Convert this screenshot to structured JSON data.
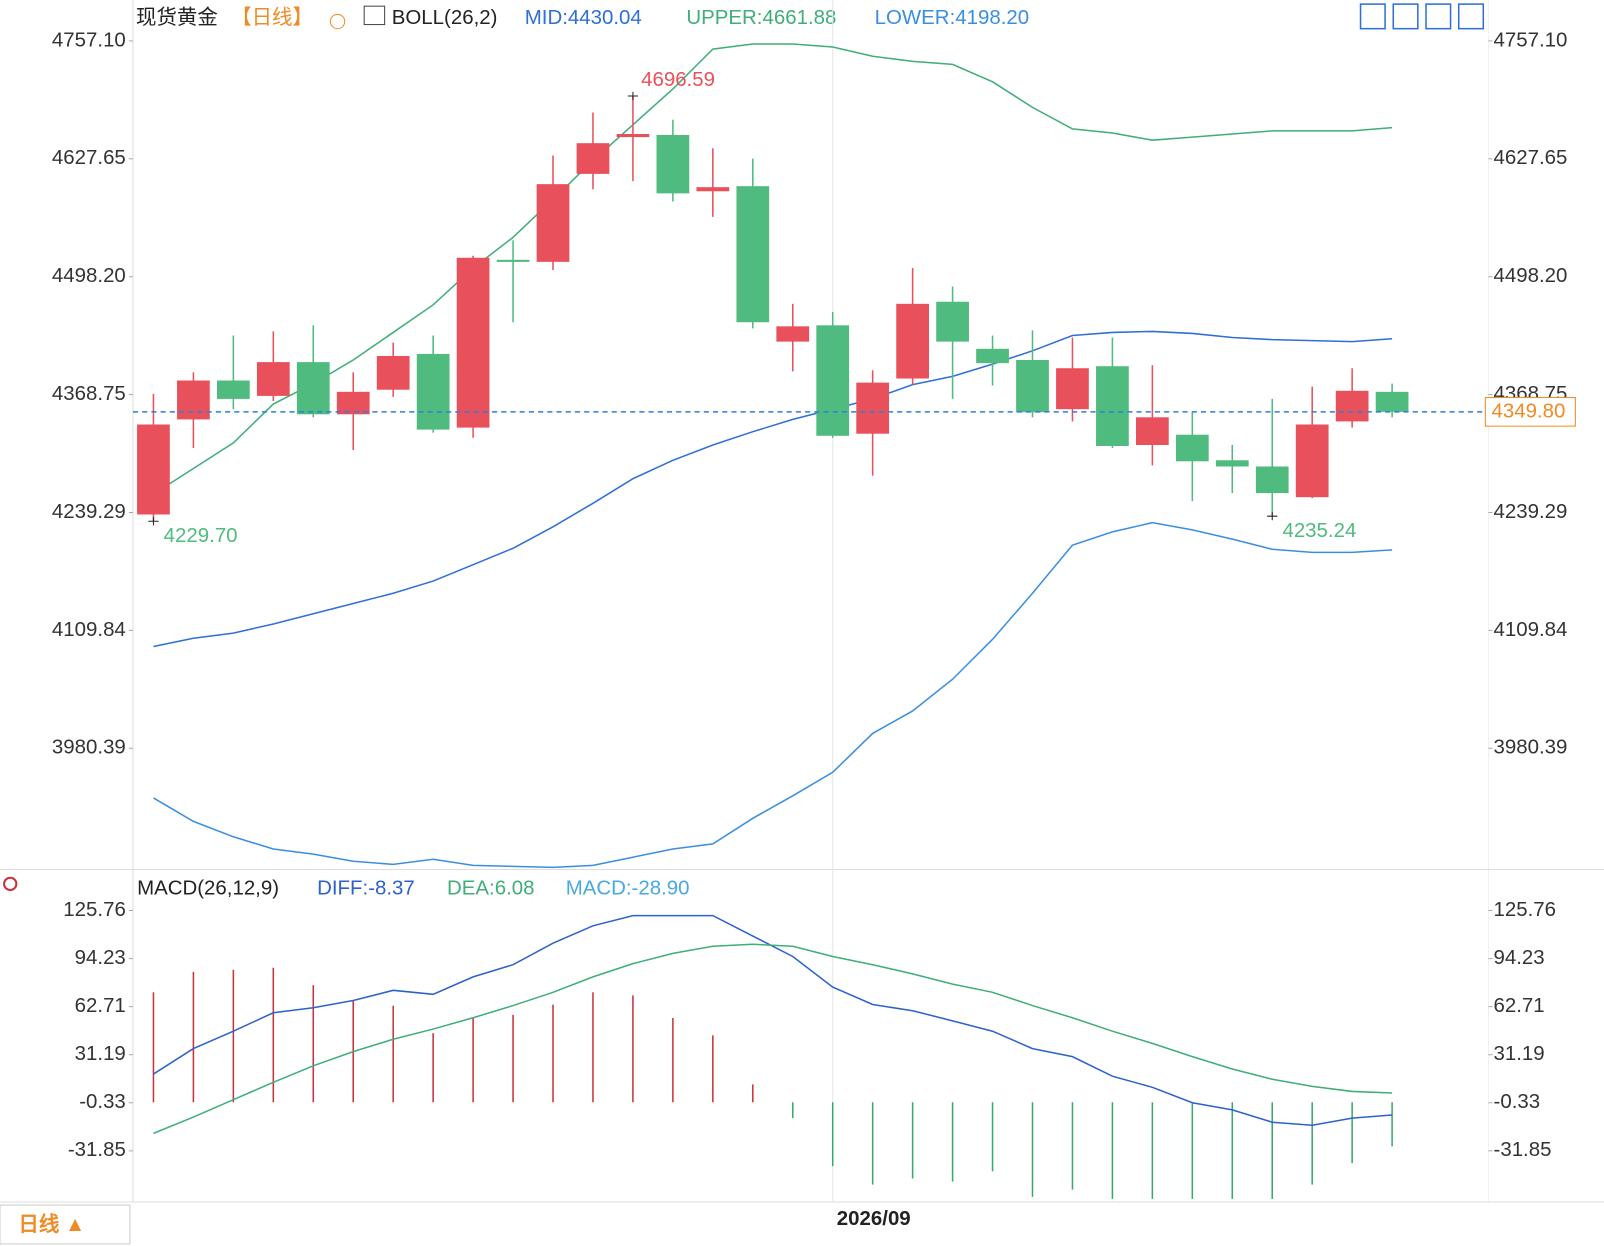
{
  "chart_data": [
    {
      "type": "candlestick",
      "title": "现货黄金",
      "period": "【日线】",
      "indicator": "BOLL(26,2)",
      "categories": [
        null,
        null,
        null,
        null,
        null,
        null,
        null,
        null,
        null,
        null,
        null,
        null,
        null,
        null,
        null,
        null,
        null,
        "2026/09",
        null,
        null,
        null,
        null,
        null,
        null,
        null,
        null,
        null,
        null,
        null,
        null,
        null,
        null
      ],
      "open": [
        4237.1,
        4341.5,
        4384.2,
        4367.3,
        4404.4,
        4347.1,
        4374.1,
        4413.4,
        4332.5,
        4516.7,
        4514.5,
        4611.1,
        4651.5,
        4653.8,
        4592.0,
        4597.6,
        4426.9,
        4444.8,
        4325.8,
        4386.4,
        4470.7,
        4419.0,
        4406.7,
        4352.7,
        4399.9,
        4313.4,
        4324.7,
        4296.6,
        4289.8,
        4256.1,
        4339.3,
        4371.8
      ],
      "high": [
        4369.6,
        4393.2,
        4433.6,
        4438.1,
        4444.8,
        4393.2,
        4425.8,
        4433.6,
        4521.2,
        4538.1,
        4631.3,
        4678.5,
        4696.59,
        4670.6,
        4639.2,
        4627.9,
        4468.4,
        4459.5,
        4395.4,
        4507.8,
        4487.5,
        4433.6,
        4439.2,
        4431.4,
        4431.4,
        4401.0,
        4349.4,
        4313.4,
        4364.0,
        4377.5,
        4397.7,
        4380.8
      ],
      "low": [
        4229.7,
        4310.1,
        4352.7,
        4361.7,
        4343.8,
        4307.8,
        4366.2,
        4326.9,
        4321.3,
        4448.2,
        4505.5,
        4594.2,
        4603.2,
        4580.8,
        4563.9,
        4441.5,
        4394.3,
        4321.3,
        4279.7,
        4379.7,
        4364.0,
        4378.6,
        4343.8,
        4339.3,
        4310.1,
        4291.0,
        4251.7,
        4260.6,
        4235.24,
        4255.0,
        4332.5,
        4343.8
      ],
      "close": [
        4335.9,
        4384.2,
        4364.0,
        4404.4,
        4347.1,
        4371.8,
        4411.1,
        4330.3,
        4519.0,
        4514.5,
        4599.8,
        4644.8,
        4654.9,
        4589.7,
        4596.5,
        4448.2,
        4443.7,
        4323.5,
        4381.9,
        4468.4,
        4426.9,
        4403.3,
        4349.4,
        4397.7,
        4312.3,
        4343.8,
        4295.5,
        4289.8,
        4260.6,
        4335.9,
        4372.9,
        4349.8
      ],
      "high_labels": [
        null,
        null,
        null,
        null,
        null,
        null,
        null,
        null,
        null,
        null,
        null,
        null,
        "4696.59",
        null,
        null,
        null,
        null,
        null,
        null,
        null,
        null,
        null,
        null,
        null,
        null,
        null,
        null,
        null,
        null,
        null,
        null,
        null
      ],
      "low_labels": [
        "4229.70",
        null,
        null,
        null,
        null,
        null,
        null,
        null,
        null,
        null,
        null,
        null,
        null,
        null,
        null,
        null,
        null,
        null,
        null,
        null,
        null,
        null,
        null,
        null,
        null,
        null,
        null,
        null,
        "4235.24",
        null,
        null,
        null
      ],
      "close_labels": [
        null,
        null,
        null,
        null,
        null,
        null,
        null,
        null,
        null,
        null,
        null,
        null,
        null,
        null,
        null,
        null,
        null,
        null,
        null,
        null,
        null,
        null,
        null,
        null,
        null,
        null,
        null,
        null,
        null,
        null,
        null,
        "4349.80"
      ],
      "up_color": "#e8505b",
      "down_color": "#4fbb7f",
      "last_price_color": "#f08a24",
      "last_line_color": "#2f7fd6",
      "series": [
        {
          "name": "MID:4430.04",
          "color": "#2f6fd6",
          "values": [
            4092.2,
            4101.2,
            4106.8,
            4116.9,
            4128.1,
            4139.3,
            4150.6,
            4164.0,
            4182.0,
            4200.0,
            4223.6,
            4249.4,
            4276.4,
            4296.6,
            4313.4,
            4328.0,
            4341.5,
            4352.7,
            4364.0,
            4379.7,
            4388.7,
            4402.2,
            4416.8,
            4433.6,
            4437.0,
            4438.1,
            4435.9,
            4431.4,
            4429.1,
            4428.0,
            4426.9,
            4430.04
          ]
        },
        {
          "name": "UPPER:4661.88",
          "color": "#3fae78",
          "values": [
            4259.5,
            4287.6,
            4315.7,
            4358.4,
            4380.8,
            4406.7,
            4437.0,
            4467.3,
            4507.7,
            4541.4,
            4583.0,
            4625.7,
            4665.0,
            4704.3,
            4748.1,
            4753.7,
            4753.7,
            4750.4,
            4740.3,
            4734.6,
            4731.3,
            4712.2,
            4684.1,
            4660.5,
            4656.0,
            4648.1,
            4651.5,
            4654.9,
            4658.3,
            4658.3,
            4658.3,
            4661.88
          ]
        },
        {
          "name": "LOWER:4198.20",
          "color": "#3a8ee0",
          "values": [
            3925.9,
            3900.1,
            3883.2,
            3869.8,
            3864.2,
            3856.3,
            3852.9,
            3858.5,
            3851.8,
            3850.7,
            3849.6,
            3851.8,
            3860.8,
            3869.8,
            3875.4,
            3903.5,
            3928.2,
            3954.0,
            3996.7,
            4021.4,
            4056.2,
            4100.0,
            4150.6,
            4203.4,
            4218.0,
            4228.1,
            4220.2,
            4210.1,
            4198.9,
            4195.5,
            4195.5,
            4198.2
          ]
        }
      ],
      "ylim": [
        3845,
        4802
      ],
      "yticks": [
        {
          "value": 4757.1,
          "label": "4757.10"
        },
        4627.65,
        {
          "value": 4498.2,
          "label": "4498.20"
        },
        4368.75,
        4239.29,
        4109.84,
        3980.39
      ]
    },
    {
      "type": "macd",
      "title": "MACD(26,12,9)",
      "histogram": {
        "name": "MACD:-28.90",
        "color": "#4aa8e0",
        "up_color": "#c8323c",
        "down_color": "#3aa86a",
        "values": [
          72.1,
          85.5,
          86.9,
          88.2,
          76.8,
          66.7,
          63.3,
          45.3,
          55.3,
          57.3,
          64.0,
          72.1,
          70.1,
          55.3,
          43.9,
          11.7,
          -10.4,
          -41.9,
          -54.0,
          -50.0,
          -52.0,
          -45.3,
          -62.0,
          -57.3,
          -63.4,
          -63.4,
          -63.4,
          -63.4,
          -63.4,
          -54.0,
          -39.9,
          -28.9
        ]
      },
      "series": [
        {
          "name": "DIFF:-8.37",
          "color": "#2c62c9",
          "values": [
            18.5,
            35.2,
            46.6,
            58.7,
            62.0,
            66.7,
            73.4,
            70.8,
            82.2,
            90.2,
            104.3,
            115.7,
            122.4,
            122.4,
            122.4,
            109.0,
            95.6,
            75.5,
            64.1,
            60.0,
            53.4,
            46.6,
            35.2,
            29.9,
            17.1,
            9.8,
            -0.3,
            -5.0,
            -13.1,
            -15.1,
            -10.4,
            -8.37
          ]
        },
        {
          "name": "DEA:6.08",
          "color": "#3fae78",
          "values": [
            -20.4,
            -9.7,
            1.7,
            13.1,
            23.9,
            33.2,
            41.3,
            48.0,
            55.4,
            63.4,
            72.1,
            82.2,
            90.9,
            97.6,
            102.3,
            103.6,
            102.3,
            95.6,
            90.2,
            84.2,
            77.5,
            72.1,
            63.4,
            55.4,
            46.6,
            38.6,
            29.9,
            21.8,
            15.1,
            10.4,
            7.1,
            6.08
          ]
        }
      ],
      "ylim": [
        -65.4,
        145.9
      ],
      "yticks": [
        125.76,
        94.23,
        62.71,
        31.19,
        -0.33,
        -31.85
      ]
    }
  ],
  "footer": {
    "period_button": "日线 ▲"
  }
}
